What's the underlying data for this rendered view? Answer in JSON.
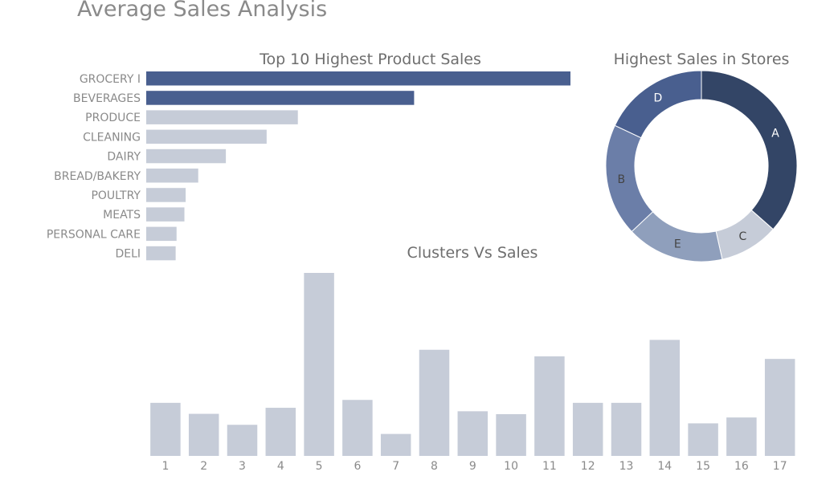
{
  "page": {
    "title": "Average Sales Analysis"
  },
  "colors": {
    "primary": "#495f8f",
    "muted": "#c6ccd8",
    "text": "#8a8a8a",
    "donut": [
      "#334566",
      "#c6ccd8",
      "#8f9fbc",
      "#6b7ea8",
      "#495f8f"
    ]
  },
  "chart_data": [
    {
      "id": "product-sales",
      "type": "bar",
      "orientation": "horizontal",
      "title": "Top 10 Highest Product Sales",
      "categories": [
        "GROCERY I",
        "BEVERAGES",
        "PRODUCE",
        "CLEANING",
        "DAIRY",
        "BREAD/BAKERY",
        "POULTRY",
        "MEATS",
        "PERSONAL CARE",
        "DELI"
      ],
      "values": [
        3777,
        2385,
        1350,
        1072,
        709,
        463,
        351,
        340,
        270,
        262
      ],
      "highlighted": [
        true,
        true,
        false,
        false,
        false,
        false,
        false,
        false,
        false,
        false
      ],
      "xlim": [
        0,
        3777
      ],
      "grid": false
    },
    {
      "id": "store-sales",
      "type": "pie",
      "donut": true,
      "title": "Highest Sales in Stores",
      "labels": [
        "A",
        "C",
        "E",
        "B",
        "D"
      ],
      "values": [
        36.5,
        10,
        16.5,
        19,
        18
      ]
    },
    {
      "id": "cluster-sales",
      "type": "bar",
      "title": "Clusters Vs Sales",
      "categories": [
        "1",
        "2",
        "3",
        "4",
        "5",
        "6",
        "7",
        "8",
        "9",
        "10",
        "11",
        "12",
        "13",
        "14",
        "15",
        "16",
        "17"
      ],
      "values": [
        290,
        230,
        170,
        263,
        1000,
        306,
        120,
        580,
        244,
        228,
        544,
        290,
        290,
        634,
        178,
        210,
        530
      ],
      "ylim": [
        0,
        1000
      ],
      "grid": false
    }
  ]
}
